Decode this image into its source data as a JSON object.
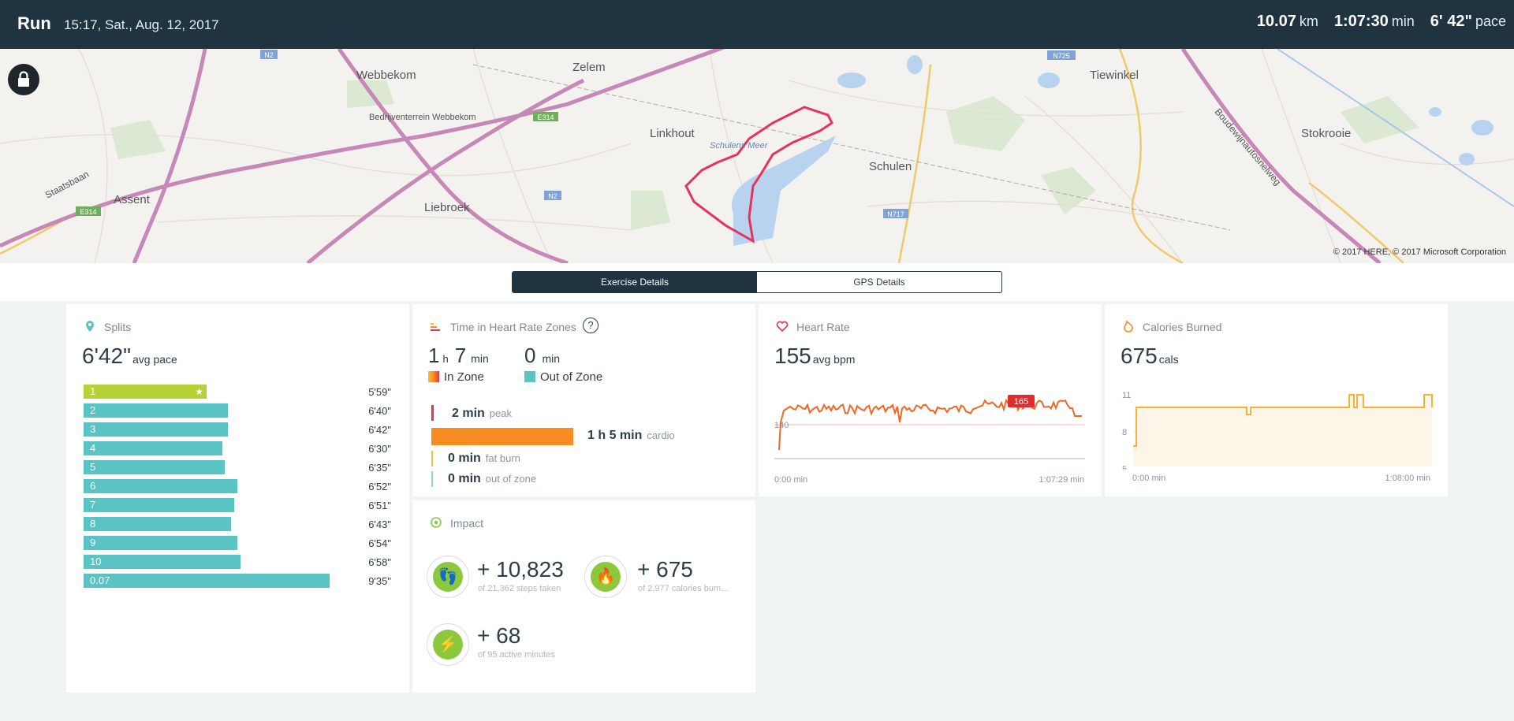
{
  "header": {
    "title": "Run",
    "datetime": "15:17, Sat., Aug. 12, 2017",
    "distance": "10.07",
    "distance_unit": "km",
    "duration": "1:07:30",
    "duration_unit": "min",
    "pace": "6' 42\"",
    "pace_unit": "pace"
  },
  "map": {
    "copyright": "© 2017 HERE, © 2017 Microsoft Corporation",
    "places": [
      "Webbekom",
      "Zelem",
      "Tiewinkel",
      "Linkhout",
      "Stokrooie",
      "Schulen",
      "Assent",
      "Liebroek",
      "Bedrijventerrein Webbekom",
      "Schulens Meer",
      "Staatsbaan",
      "Boudewijnautosnelweg"
    ],
    "road_labels": [
      "N2",
      "E314",
      "N725",
      "N2",
      "E314",
      "N717"
    ]
  },
  "tabs": {
    "exercise": "Exercise Details",
    "gps": "GPS Details"
  },
  "splits": {
    "title": "Splits",
    "avg_value": "6'42\"",
    "avg_label": "avg pace",
    "items": [
      {
        "label": "1",
        "time": "5'59\"",
        "fraction": 0.4
      },
      {
        "label": "2",
        "time": "6'40\"",
        "fraction": 0.47
      },
      {
        "label": "3",
        "time": "6'42\"",
        "fraction": 0.47
      },
      {
        "label": "4",
        "time": "6'30\"",
        "fraction": 0.45
      },
      {
        "label": "5",
        "time": "6'35\"",
        "fraction": 0.46
      },
      {
        "label": "6",
        "time": "6'52\"",
        "fraction": 0.5
      },
      {
        "label": "7",
        "time": "6'51\"",
        "fraction": 0.49
      },
      {
        "label": "8",
        "time": "6'43\"",
        "fraction": 0.48
      },
      {
        "label": "9",
        "time": "6'54\"",
        "fraction": 0.5
      },
      {
        "label": "10",
        "time": "6'58\"",
        "fraction": 0.51
      },
      {
        "label": "0.07",
        "time": "9'35\"",
        "fraction": 0.8
      }
    ]
  },
  "zones": {
    "title": "Time in Heart Rate Zones",
    "in_zone_h": "1",
    "in_zone_h_unit": "h",
    "in_zone_m": "7",
    "in_zone_m_unit": "min",
    "in_zone_label": "In Zone",
    "out_zone_m": "0",
    "out_zone_m_unit": "min",
    "out_zone_label": "Out of Zone",
    "peak": {
      "value": "2 min",
      "label": "peak",
      "color": "#e8334a"
    },
    "cardio": {
      "value": "1 h  5 min",
      "label": "cardio",
      "color": "#f78c22",
      "fraction": 0.97
    },
    "fatburn": {
      "value": "0 min",
      "label": "fat burn",
      "color": "#f5c037"
    },
    "outzone": {
      "value": "0 min",
      "label": "out of zone",
      "color": "#8ad3e8"
    }
  },
  "heart": {
    "title": "Heart Rate",
    "avg_value": "155",
    "avg_label": "avg bpm",
    "tick_140": "140",
    "max_badge": "165",
    "x_start": "0:00 min",
    "x_end": "1:07:29 min"
  },
  "calories": {
    "title": "Calories Burned",
    "value": "675",
    "unit": "cals",
    "y_ticks": [
      "11",
      "8",
      "5"
    ],
    "x_start": "0:00 min",
    "x_end": "1:08:00 min"
  },
  "impact": {
    "title": "Impact",
    "steps": {
      "value": "+ 10,823",
      "sub": "of 21,362 steps taken"
    },
    "cals": {
      "value": "+ 675",
      "sub": "of 2,977 calories bum..."
    },
    "active": {
      "value": "+ 68",
      "sub": "of 95 active minutes"
    }
  },
  "colors": {
    "header": "#1f3340",
    "teal": "#5ac3c3",
    "lime": "#b5d135",
    "hr_line": "#f26522",
    "cal_line": "#f5b335",
    "route": "#e8325c"
  }
}
